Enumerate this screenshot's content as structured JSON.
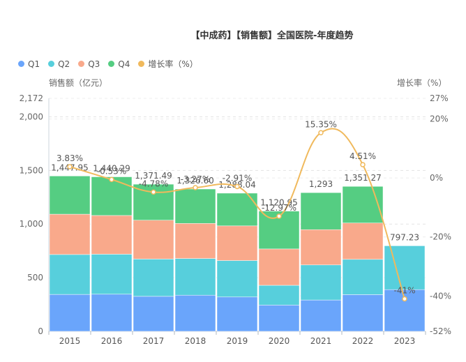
{
  "chart_data": {
    "type": "bar",
    "title": "【中成药】【销售额】全国医院-年度趋势",
    "categories": [
      "2015",
      "2016",
      "2017",
      "2018",
      "2019",
      "2020",
      "2021",
      "2022",
      "2023"
    ],
    "series": [
      {
        "name": "Q1",
        "type": "bar",
        "stack": "sales",
        "color": "#6aa5fb",
        "values": [
          344,
          346,
          326,
          337,
          320,
          245,
          292,
          342,
          389
        ]
      },
      {
        "name": "Q2",
        "type": "bar",
        "stack": "sales",
        "color": "#57cfdc",
        "values": [
          372,
          373,
          348,
          342,
          340,
          184,
          327,
          329,
          408.23
        ]
      },
      {
        "name": "Q3",
        "type": "bar",
        "stack": "sales",
        "color": "#f9a98b",
        "values": [
          376,
          361,
          362,
          327,
          323,
          339,
          329,
          339,
          null
        ]
      },
      {
        "name": "Q4",
        "type": "bar",
        "stack": "sales",
        "color": "#55cd82",
        "values": [
          355.95,
          360.29,
          335.49,
          320.6,
          305.04,
          352.95,
          345,
          341.27,
          null
        ]
      },
      {
        "name": "增长率（%）",
        "type": "line",
        "axis": "right",
        "color": "#f0b95c",
        "values": [
          3.83,
          -0.53,
          -4.78,
          -3.27,
          -2.91,
          -12.97,
          15.35,
          4.51,
          -41
        ]
      }
    ],
    "totals": [
      1447.95,
      1440.29,
      1371.49,
      1326.6,
      1288.04,
      1120.95,
      1293,
      1351.27,
      797.23
    ],
    "total_labels": [
      "1,447.95",
      "1,440.29",
      "1,371.49",
      "1,326.60",
      "1,288.04",
      "1,120.95",
      "1,293",
      "1,351.27",
      "797.23"
    ],
    "growth_labels": [
      "3.83%",
      "-0.53%",
      "-4.78%",
      "-3.27%",
      "-2.91%",
      "-12.97%",
      "15.35%",
      "4.51%",
      "-41%"
    ],
    "ylabel": "销售额（亿元）",
    "ylabel_right": "增长率（%）",
    "ylim": [
      0,
      2172
    ],
    "yticks": [
      "0",
      "500",
      "1,000",
      "1,500",
      "2,000",
      "2,172"
    ],
    "ytick_values": [
      0,
      500,
      1000,
      1500,
      2000,
      2172
    ],
    "ylim_right": [
      -52,
      27
    ],
    "yticks_right": [
      "-52%",
      "-40%",
      "-20%",
      "0%",
      "20%",
      "27%"
    ],
    "ytick_values_right": [
      -52,
      -40,
      -20,
      0,
      20,
      27
    ],
    "grid": true,
    "legend_position": "top-left"
  },
  "legend": [
    {
      "label": "Q1",
      "color": "#6aa5fb"
    },
    {
      "label": "Q2",
      "color": "#57cfdc"
    },
    {
      "label": "Q3",
      "color": "#f9a98b"
    },
    {
      "label": "Q4",
      "color": "#55cd82"
    },
    {
      "label": "增长率（%）",
      "color": "#f0b95c"
    }
  ]
}
